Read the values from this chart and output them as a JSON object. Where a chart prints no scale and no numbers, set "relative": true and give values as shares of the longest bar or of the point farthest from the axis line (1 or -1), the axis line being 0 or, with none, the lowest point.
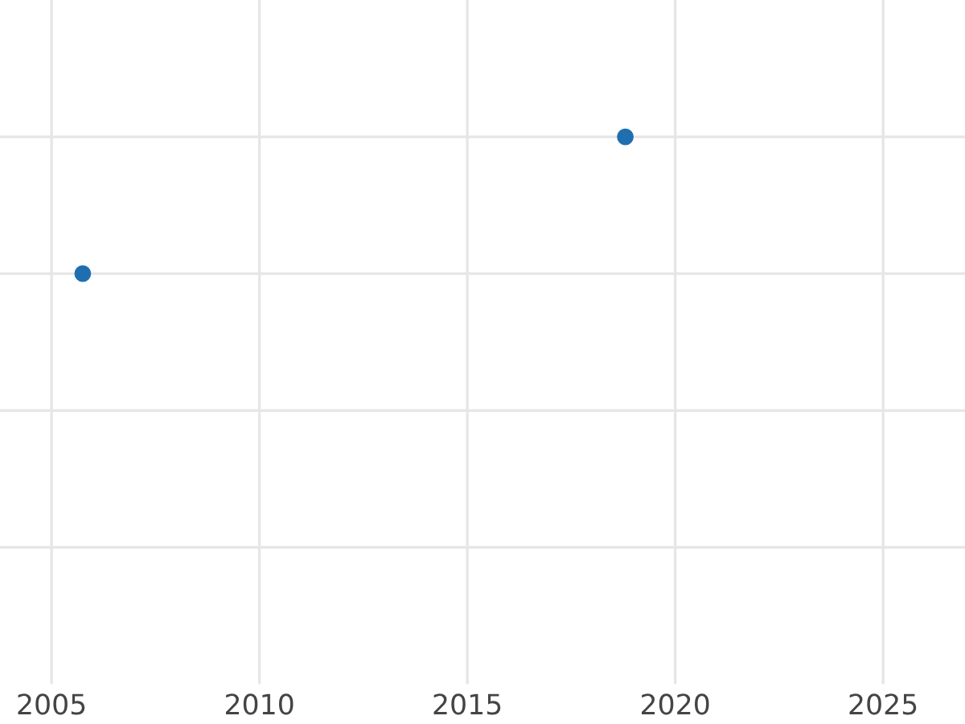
{
  "chart_data": {
    "type": "scatter",
    "relative": true,
    "x": [
      2005.75,
      2018.8
    ],
    "series": [
      {
        "color": "#1f6fb0",
        "values": [
          0,
          1
        ]
      }
    ],
    "xlim": [
      2003.76,
      2026.97
    ],
    "xticks": [
      2005,
      2010,
      2015,
      2020,
      2025
    ],
    "tick_labels": "x",
    "grid": true,
    "marker": "circle"
  }
}
